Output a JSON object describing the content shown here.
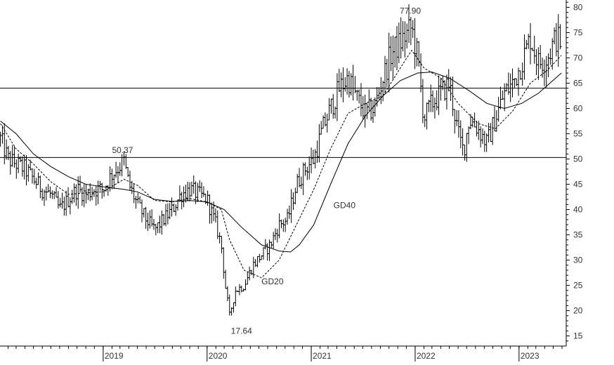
{
  "chart_data": {
    "type": "ohlc",
    "x_axis": {
      "labels": [
        "2019",
        "2020",
        "2021",
        "2022",
        "2023"
      ],
      "range": [
        "2018-01",
        "2023-06"
      ]
    },
    "y_axis": {
      "ticks": [
        15,
        20,
        25,
        30,
        35,
        40,
        45,
        50,
        55,
        60,
        65,
        70,
        75,
        80
      ],
      "position": "right",
      "ylim": [
        13,
        82
      ]
    },
    "horizontal_lines": [
      64,
      50.3
    ],
    "annotations": [
      {
        "text": "50.37",
        "date": "2019-03-15",
        "value": 50.37,
        "anchor": "above"
      },
      {
        "text": "17.64",
        "date": "2020-03-20",
        "value": 17.64,
        "anchor": "below"
      },
      {
        "text": "77.90",
        "date": "2021-12-20",
        "value": 77.9,
        "anchor": "above"
      },
      {
        "text": "GD40",
        "date": "2021-03-20",
        "value": 40.3,
        "anchor": "label"
      },
      {
        "text": "GD20",
        "date": "2020-07-10",
        "value": 25.2,
        "anchor": "label"
      }
    ],
    "price_path": [
      [
        "2018-01-05",
        54
      ],
      [
        "2018-02-01",
        50
      ],
      [
        "2018-03-01",
        49
      ],
      [
        "2018-04-01",
        48
      ],
      [
        "2018-05-01",
        46
      ],
      [
        "2018-06-01",
        44
      ],
      [
        "2018-07-01",
        43
      ],
      [
        "2018-08-01",
        40
      ],
      [
        "2018-09-01",
        42
      ],
      [
        "2018-10-01",
        44
      ],
      [
        "2018-11-01",
        43
      ],
      [
        "2018-12-01",
        44
      ],
      [
        "2019-01-01",
        44
      ],
      [
        "2019-02-01",
        47
      ],
      [
        "2019-03-15",
        49.5
      ],
      [
        "2019-04-01",
        45
      ],
      [
        "2019-05-01",
        41
      ],
      [
        "2019-06-01",
        38
      ],
      [
        "2019-07-01",
        36
      ],
      [
        "2019-08-01",
        38
      ],
      [
        "2019-09-01",
        40
      ],
      [
        "2019-10-01",
        43
      ],
      [
        "2019-11-01",
        44
      ],
      [
        "2019-12-01",
        43
      ],
      [
        "2020-01-01",
        42
      ],
      [
        "2020-02-01",
        37
      ],
      [
        "2020-02-20",
        33
      ],
      [
        "2020-03-05",
        25
      ],
      [
        "2020-03-20",
        19
      ],
      [
        "2020-04-10",
        24
      ],
      [
        "2020-05-10",
        25
      ],
      [
        "2020-06-10",
        29
      ],
      [
        "2020-07-10",
        31
      ],
      [
        "2020-08-10",
        33
      ],
      [
        "2020-09-10",
        37
      ],
      [
        "2020-10-10",
        38
      ],
      [
        "2020-11-10",
        45
      ],
      [
        "2020-12-10",
        48
      ],
      [
        "2021-01-10",
        50
      ],
      [
        "2021-02-10",
        56
      ],
      [
        "2021-03-10",
        60
      ],
      [
        "2021-04-10",
        64
      ],
      [
        "2021-05-10",
        66
      ],
      [
        "2021-06-10",
        62
      ],
      [
        "2021-07-10",
        59
      ],
      [
        "2021-08-10",
        60
      ],
      [
        "2021-09-10",
        66
      ],
      [
        "2021-10-10",
        71
      ],
      [
        "2021-11-10",
        73
      ],
      [
        "2021-12-20",
        76
      ],
      [
        "2022-01-10",
        70
      ],
      [
        "2022-02-01",
        58
      ],
      [
        "2022-03-01",
        61
      ],
      [
        "2022-04-01",
        63
      ],
      [
        "2022-05-01",
        65
      ],
      [
        "2022-06-01",
        55
      ],
      [
        "2022-06-20",
        51.5
      ],
      [
        "2022-07-10",
        58
      ],
      [
        "2022-08-10",
        56
      ],
      [
        "2022-09-10",
        53
      ],
      [
        "2022-10-10",
        58
      ],
      [
        "2022-11-10",
        63
      ],
      [
        "2022-12-10",
        65
      ],
      [
        "2023-01-10",
        69
      ],
      [
        "2023-02-10",
        74
      ],
      [
        "2023-03-10",
        69
      ],
      [
        "2023-04-10",
        70
      ],
      [
        "2023-05-10",
        74
      ],
      [
        "2023-05-30",
        73
      ]
    ],
    "gd20_path": [
      [
        "2018-01-05",
        57
      ],
      [
        "2018-03-01",
        52
      ],
      [
        "2018-05-01",
        49
      ],
      [
        "2018-07-01",
        45.5
      ],
      [
        "2018-09-01",
        43
      ],
      [
        "2018-11-01",
        43.3
      ],
      [
        "2019-01-01",
        43.5
      ],
      [
        "2019-03-15",
        46
      ],
      [
        "2019-05-01",
        44.8
      ],
      [
        "2019-07-01",
        41.8
      ],
      [
        "2019-09-01",
        41.5
      ],
      [
        "2019-11-01",
        42.2
      ],
      [
        "2020-01-01",
        41.5
      ],
      [
        "2020-02-20",
        40
      ],
      [
        "2020-03-20",
        34
      ],
      [
        "2020-05-10",
        28
      ],
      [
        "2020-07-10",
        26.5
      ],
      [
        "2020-09-10",
        30
      ],
      [
        "2020-11-10",
        37
      ],
      [
        "2021-01-10",
        44
      ],
      [
        "2021-03-10",
        52
      ],
      [
        "2021-05-10",
        59
      ],
      [
        "2021-07-10",
        61
      ],
      [
        "2021-09-10",
        62.5
      ],
      [
        "2021-11-10",
        68
      ],
      [
        "2021-12-20",
        71.5
      ],
      [
        "2022-02-01",
        68
      ],
      [
        "2022-04-01",
        66
      ],
      [
        "2022-06-01",
        61
      ],
      [
        "2022-08-10",
        57
      ],
      [
        "2022-10-10",
        56
      ],
      [
        "2022-12-10",
        59.5
      ],
      [
        "2023-02-10",
        65
      ],
      [
        "2023-04-10",
        67.5
      ],
      [
        "2023-05-30",
        70.5
      ]
    ],
    "gd40_path": [
      [
        "2018-01-05",
        57.5
      ],
      [
        "2018-03-01",
        55
      ],
      [
        "2018-05-01",
        51
      ],
      [
        "2018-07-01",
        48.5
      ],
      [
        "2018-09-01",
        46.5
      ],
      [
        "2018-11-01",
        45
      ],
      [
        "2019-01-01",
        44.5
      ],
      [
        "2019-03-15",
        44
      ],
      [
        "2019-05-01",
        43.5
      ],
      [
        "2019-07-01",
        42
      ],
      [
        "2019-09-01",
        41.6
      ],
      [
        "2019-11-01",
        41.8
      ],
      [
        "2020-01-01",
        41.5
      ],
      [
        "2020-03-01",
        40
      ],
      [
        "2020-05-01",
        36.5
      ],
      [
        "2020-07-10",
        33
      ],
      [
        "2020-09-10",
        31.8
      ],
      [
        "2020-10-20",
        31.6
      ],
      [
        "2020-11-20",
        33
      ],
      [
        "2021-01-10",
        37
      ],
      [
        "2021-03-10",
        45
      ],
      [
        "2021-05-10",
        53
      ],
      [
        "2021-07-10",
        58.5
      ],
      [
        "2021-09-10",
        62.5
      ],
      [
        "2021-11-10",
        65.5
      ],
      [
        "2022-01-10",
        67
      ],
      [
        "2022-03-01",
        67.2
      ],
      [
        "2022-05-01",
        66
      ],
      [
        "2022-07-10",
        63.5
      ],
      [
        "2022-09-10",
        61
      ],
      [
        "2022-11-10",
        60
      ],
      [
        "2023-01-10",
        61
      ],
      [
        "2023-03-10",
        63
      ],
      [
        "2023-05-30",
        67
      ]
    ],
    "grid": false
  }
}
